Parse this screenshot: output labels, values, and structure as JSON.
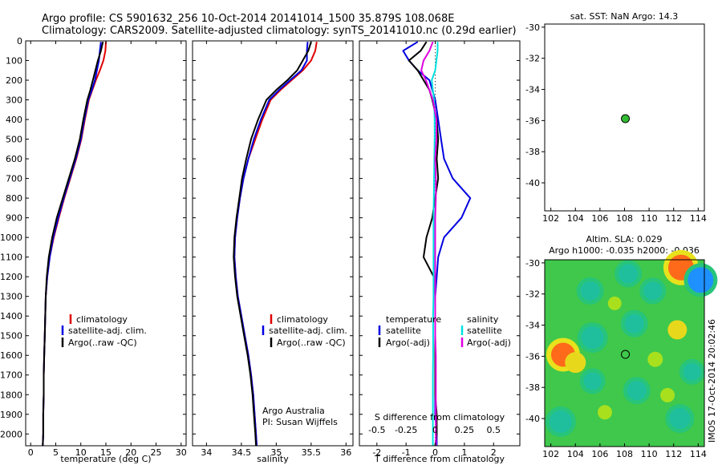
{
  "title": {
    "line1": "Argo profile: CS 5901632_256 10-Oct-2014 20141014_1500 35.879S 108.068E",
    "line2": "Climatology: CARS2009. Satellite-adjusted climatology: synTS_20141010.nc (0.29d earlier)"
  },
  "watermark": "IMOS 17-Oct-2014 20:02:46",
  "credit": {
    "line1": "Argo Australia",
    "line2": "PI: Susan Wijffels"
  },
  "colors": {
    "climatology": "#e00000",
    "satellite": "#0000e0",
    "argo": "#000000",
    "sat_s": "#00e0e0",
    "argo_s": "#e000e0",
    "marker": "#33bb33"
  },
  "chart_data": [
    {
      "type": "line",
      "name": "temperature",
      "xlabel": "temperature (deg C)",
      "ylabel": "",
      "xlim": [
        -1,
        31
      ],
      "ylim": [
        2060,
        0
      ],
      "xticks": [
        0,
        5,
        10,
        15,
        20,
        25,
        30
      ],
      "xtick_labels": [
        "0",
        "5",
        "10",
        "15",
        "20",
        "25",
        "30"
      ],
      "yticks": [
        0,
        100,
        200,
        300,
        400,
        500,
        600,
        700,
        800,
        900,
        1000,
        1100,
        1200,
        1300,
        1400,
        1500,
        1600,
        1700,
        1800,
        1900,
        2000
      ],
      "ytick_labels": [
        "0",
        "100",
        "200",
        "300",
        "400",
        "500",
        "600",
        "700",
        "800",
        "900",
        "1000",
        "1100",
        "1200",
        "1300",
        "1400",
        "1500",
        "1600",
        "1700",
        "1800",
        "1900",
        "2000"
      ],
      "depth": [
        5,
        50,
        100,
        150,
        200,
        250,
        300,
        400,
        500,
        600,
        700,
        800,
        900,
        1000,
        1100,
        1200,
        1300,
        1400,
        1500,
        1600,
        1700,
        1800,
        1900,
        2000,
        2060
      ],
      "series": [
        {
          "name": "climatology",
          "color": "#e00000",
          "values": [
            15.0,
            14.9,
            14.5,
            13.8,
            13.0,
            12.3,
            11.6,
            10.8,
            10.1,
            9.1,
            7.9,
            6.7,
            5.6,
            4.6,
            3.8,
            3.3,
            3.0,
            2.9,
            2.8,
            2.7,
            2.6,
            2.6,
            2.5,
            2.5,
            2.4
          ]
        },
        {
          "name": "satellite-adj. clim.",
          "color": "#0000e0",
          "values": [
            14.0,
            13.8,
            13.6,
            13.2,
            12.8,
            12.2,
            11.5,
            10.7,
            10.0,
            9.0,
            7.8,
            6.6,
            5.5,
            4.5,
            3.8,
            3.3,
            3.0,
            2.9,
            2.8,
            2.7,
            2.6,
            2.6,
            2.5,
            2.5,
            2.4
          ]
        },
        {
          "name": "Argo(..raw -QC)",
          "color": "#000000",
          "values": [
            14.4,
            14.0,
            13.4,
            12.9,
            12.4,
            11.9,
            11.3,
            10.5,
            9.8,
            8.8,
            7.6,
            6.4,
            5.2,
            4.3,
            3.6,
            3.2,
            3.0,
            2.9,
            2.8,
            2.7,
            2.6,
            2.6,
            2.5,
            2.5,
            2.4
          ]
        }
      ],
      "legend": [
        "climatology",
        "satellite-adj. clim.",
        "Argo(..raw -QC)"
      ]
    },
    {
      "type": "line",
      "name": "salinity",
      "xlabel": "salinity",
      "xlim": [
        33.8,
        36.1
      ],
      "ylim": [
        2060,
        0
      ],
      "xticks": [
        34,
        34.5,
        35,
        35.5,
        36
      ],
      "xtick_labels": [
        "34",
        "34.5",
        "35",
        "35.5",
        "36"
      ],
      "depth": [
        5,
        50,
        100,
        150,
        200,
        250,
        300,
        400,
        500,
        600,
        700,
        800,
        900,
        1000,
        1100,
        1200,
        1300,
        1400,
        1500,
        1600,
        1700,
        1800,
        1900,
        2000,
        2060
      ],
      "series": [
        {
          "name": "climatology",
          "color": "#e00000",
          "values": [
            35.58,
            35.56,
            35.5,
            35.38,
            35.22,
            35.06,
            34.92,
            34.8,
            34.7,
            34.6,
            34.53,
            34.48,
            34.44,
            34.41,
            34.4,
            34.42,
            34.45,
            34.5,
            34.55,
            34.6,
            34.64,
            34.67,
            34.69,
            34.71,
            34.72
          ]
        },
        {
          "name": "satellite-adj. clim.",
          "color": "#0000e0",
          "values": [
            35.45,
            35.44,
            35.44,
            35.36,
            35.2,
            35.04,
            34.9,
            34.78,
            34.68,
            34.6,
            34.53,
            34.48,
            34.44,
            34.41,
            34.4,
            34.42,
            34.45,
            34.5,
            34.55,
            34.6,
            34.64,
            34.67,
            34.69,
            34.71,
            34.72
          ]
        },
        {
          "name": "Argo(..raw -QC)",
          "color": "#000000",
          "values": [
            35.5,
            35.46,
            35.38,
            35.3,
            35.16,
            35.0,
            34.86,
            34.74,
            34.64,
            34.57,
            34.51,
            34.47,
            34.43,
            34.4,
            34.39,
            34.41,
            34.44,
            34.49,
            34.54,
            34.59,
            34.63,
            34.66,
            34.68,
            34.7,
            34.71
          ]
        }
      ],
      "legend": [
        "climatology",
        "satellite-adj. clim.",
        "Argo(..raw -QC)"
      ]
    },
    {
      "type": "line",
      "name": "difference",
      "xlabel": "T difference from climatology",
      "xlabel2": "S difference from climatology",
      "xlim": [
        -2.6,
        2.9
      ],
      "ylim": [
        2060,
        0
      ],
      "xticks": [
        -2,
        -1,
        0,
        1,
        2
      ],
      "xtick_labels": [
        "-2",
        "-1",
        "0",
        "1",
        "2"
      ],
      "xticks2": [
        -0.5,
        -0.25,
        0,
        0.25,
        0.5
      ],
      "xtick_labels2": [
        "-0.5",
        "-0.25",
        "0",
        "0.25",
        "0.5"
      ],
      "s_scale": 4,
      "depth": [
        5,
        50,
        100,
        150,
        200,
        250,
        300,
        400,
        500,
        600,
        700,
        800,
        900,
        1000,
        1100,
        1200,
        1300,
        1400,
        1500,
        1600,
        1700,
        1800,
        1900,
        2000,
        2060
      ],
      "series": [
        {
          "name": "temperature satellite",
          "color": "#0000e0",
          "kind": "T",
          "values": [
            -0.6,
            -1.1,
            -0.9,
            -0.6,
            -0.2,
            -0.1,
            0.0,
            0.1,
            0.2,
            0.3,
            0.6,
            1.2,
            0.9,
            0.3,
            0.1,
            0.05,
            0.0,
            0.0,
            0.0,
            0.0,
            0.0,
            0.0,
            0.0,
            0.05,
            0.05
          ]
        },
        {
          "name": "temperature Argo(-adj)",
          "color": "#000000",
          "kind": "T",
          "values": [
            -0.3,
            -0.5,
            -0.9,
            -0.6,
            -0.4,
            -0.2,
            -0.1,
            0.05,
            0.1,
            0.05,
            0.1,
            0.0,
            -0.1,
            -0.3,
            -0.4,
            -0.05,
            0.0,
            0.0,
            0.0,
            0.0,
            0.0,
            0.0,
            0.05,
            0.05,
            0.0
          ]
        },
        {
          "name": "salinity satellite",
          "color": "#00e0e0",
          "kind": "S",
          "values": [
            0.02,
            0.02,
            0.01,
            0.0,
            -0.03,
            -0.02,
            -0.01,
            -0.005,
            -0.005,
            -0.008,
            -0.01,
            -0.012,
            -0.015,
            -0.015,
            -0.015,
            -0.015,
            -0.015,
            -0.018,
            -0.018,
            -0.018,
            -0.02,
            -0.02,
            -0.02,
            -0.02,
            -0.02
          ]
        },
        {
          "name": "salinity Argo(-adj)",
          "color": "#e000e0",
          "kind": "S",
          "values": [
            -0.02,
            -0.05,
            -0.1,
            -0.12,
            -0.08,
            -0.05,
            -0.02,
            0.01,
            0.01,
            0.0,
            0.005,
            0.005,
            0.0,
            0.0,
            0.0,
            0.0,
            0.0,
            0.0,
            0.0,
            0.005,
            0.005,
            0.005,
            0.005,
            0.005,
            0.005
          ]
        }
      ],
      "legend_temperature": {
        "header": "temperature",
        "items": [
          "satellite",
          "Argo(-adj)"
        ]
      },
      "legend_salinity": {
        "header": "salinity",
        "items": [
          "satellite",
          "Argo(-adj)"
        ]
      }
    },
    {
      "type": "scatter",
      "name": "sst-map",
      "title": "sat. SST: NaN Argo: 14.3",
      "xlim": [
        101.5,
        114.5
      ],
      "ylim": [
        -41.8,
        -29.8
      ],
      "xticks": [
        102,
        104,
        106,
        108,
        110,
        112,
        114
      ],
      "xtick_labels": [
        "102",
        "104",
        "106",
        "108",
        "110",
        "112",
        "114"
      ],
      "yticks": [
        -30,
        -32,
        -34,
        -36,
        -38,
        -40
      ],
      "ytick_labels": [
        "-30",
        "-32",
        "-34",
        "-36",
        "-38",
        "-40"
      ],
      "points": [
        {
          "x": 108.068,
          "y": -35.879
        }
      ]
    },
    {
      "type": "heatmap",
      "name": "sla-map",
      "title": "Altim. SLA: 0.029",
      "subtitle": "Argo h1000: -0.035 h2000: -0.036",
      "xlim": [
        101.5,
        114.5
      ],
      "ylim": [
        -41.8,
        -29.8
      ],
      "xticks": [
        102,
        104,
        106,
        108,
        110,
        112,
        114
      ],
      "xtick_labels": [
        "102",
        "104",
        "106",
        "108",
        "110",
        "112",
        "114"
      ],
      "yticks": [
        -30,
        -32,
        -34,
        -36,
        -38,
        -40
      ],
      "ytick_labels": [
        "-30",
        "-32",
        "-34",
        "-36",
        "-38",
        "-40"
      ],
      "points": [
        {
          "x": 108.068,
          "y": -35.879
        }
      ],
      "blobs": [
        {
          "x": 112.6,
          "y": -30.3,
          "v": 1.0
        },
        {
          "x": 114.2,
          "y": -31.1,
          "v": -1.0
        },
        {
          "x": 103.0,
          "y": -35.9,
          "v": 0.9
        },
        {
          "x": 104.0,
          "y": -36.4,
          "v": 0.7
        },
        {
          "x": 105.2,
          "y": -31.8,
          "v": -0.6
        },
        {
          "x": 108.3,
          "y": -30.7,
          "v": -0.6
        },
        {
          "x": 110.3,
          "y": -31.8,
          "v": -0.55
        },
        {
          "x": 105.4,
          "y": -34.8,
          "v": -0.8
        },
        {
          "x": 108.8,
          "y": -33.9,
          "v": -0.6
        },
        {
          "x": 112.3,
          "y": -34.3,
          "v": 0.6
        },
        {
          "x": 109.0,
          "y": -38.2,
          "v": -0.6
        },
        {
          "x": 105.4,
          "y": -37.6,
          "v": -0.5
        },
        {
          "x": 102.8,
          "y": -40.2,
          "v": -0.8
        },
        {
          "x": 112.5,
          "y": -40.0,
          "v": -0.7
        },
        {
          "x": 113.5,
          "y": -37.0,
          "v": -0.5
        },
        {
          "x": 110.5,
          "y": -36.2,
          "v": 0.35
        },
        {
          "x": 106.4,
          "y": -39.6,
          "v": 0.3
        },
        {
          "x": 107.2,
          "y": -32.6,
          "v": 0.25
        },
        {
          "x": 111.5,
          "y": -38.5,
          "v": 0.3
        }
      ]
    }
  ]
}
